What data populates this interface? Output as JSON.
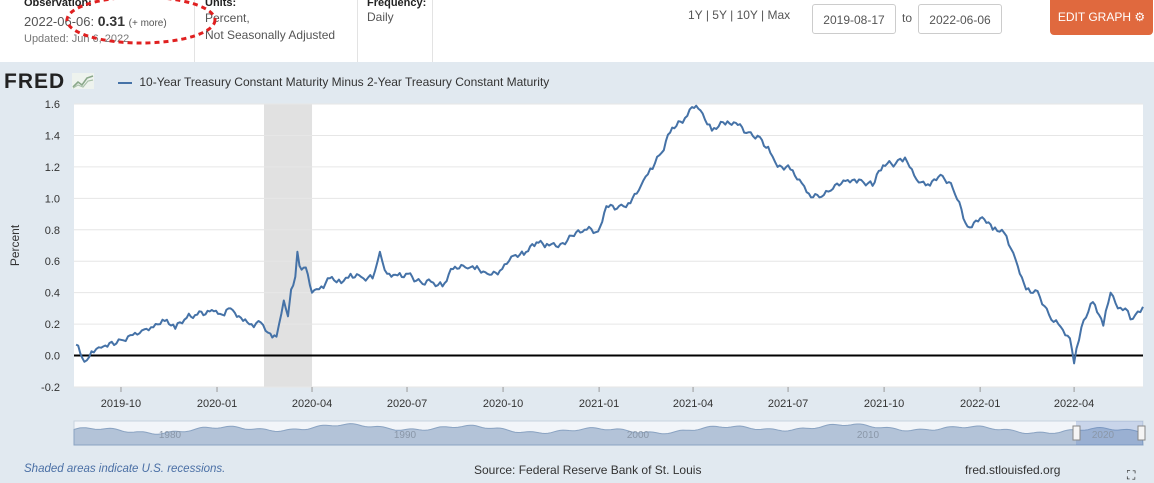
{
  "header": {
    "observation_label": "Observation:",
    "observation_date": "2022-06-06:",
    "observation_value": "0.31",
    "observation_more": "(+ more)",
    "updated": "Updated: Jun 6, 2022",
    "units_label": "Units:",
    "units_line1": "Percent,",
    "units_line2": "Not Seasonally Adjusted",
    "frequency_label": "Frequency:",
    "frequency_value": "Daily",
    "range_1y": "1Y",
    "range_5y": "5Y",
    "range_10y": "10Y",
    "range_max": "Max",
    "range_sep": "|",
    "start_date": "2019-08-17",
    "to_label": "to",
    "end_date": "2022-06-06",
    "edit_graph": "EDIT GRAPH"
  },
  "logo_text": "FRED",
  "footer": {
    "note": "Shaded areas indicate U.S. recessions.",
    "source": "Source: Federal Reserve Bank of St. Louis",
    "site": "fred.stlouisfed.org",
    "navigator_labels": [
      "1980",
      "1990",
      "2000",
      "2010",
      "2020"
    ]
  },
  "colors": {
    "line": "#4572a7",
    "recession": "#e1e1e1",
    "panel": "#e1e9f0",
    "edit_button": "#e0693e"
  },
  "chart_data": {
    "type": "line",
    "title": "10-Year Treasury Constant Maturity Minus 2-Year Treasury Constant Maturity",
    "xlabel": "",
    "ylabel": "Percent",
    "ylim": [
      -0.2,
      1.6
    ],
    "yticks": [
      -0.2,
      0.0,
      0.2,
      0.4,
      0.6,
      0.8,
      1.0,
      1.2,
      1.4,
      1.6
    ],
    "ytick_labels": [
      "-0.2",
      "0.0",
      "0.2",
      "0.4",
      "0.6",
      "0.8",
      "1.0",
      "1.2",
      "1.4",
      "1.6"
    ],
    "xlim": [
      "2019-08-17",
      "2022-06-06"
    ],
    "xticks": [
      "2019-10-01",
      "2020-01-01",
      "2020-04-01",
      "2020-07-01",
      "2020-10-01",
      "2021-01-01",
      "2021-04-01",
      "2021-07-01",
      "2021-10-01",
      "2022-01-01",
      "2022-04-01"
    ],
    "xtick_labels": [
      "2019-10",
      "2020-01",
      "2020-04",
      "2020-07",
      "2020-10",
      "2021-01",
      "2021-04",
      "2021-07",
      "2021-10",
      "2022-01",
      "2022-04"
    ],
    "recessions": [
      [
        "2020-02-15",
        "2020-04-01"
      ]
    ],
    "zero_line": true,
    "grid": "horizontal",
    "series": [
      {
        "name": "10-Year Treasury Constant Maturity Minus 2-Year Treasury Constant Maturity",
        "points": [
          [
            "2019-08-19",
            0.07
          ],
          [
            "2019-08-27",
            -0.04
          ],
          [
            "2019-09-05",
            0.02
          ],
          [
            "2019-09-12",
            0.05
          ],
          [
            "2019-09-20",
            0.08
          ],
          [
            "2019-10-01",
            0.1
          ],
          [
            "2019-10-10",
            0.13
          ],
          [
            "2019-10-21",
            0.16
          ],
          [
            "2019-11-01",
            0.18
          ],
          [
            "2019-11-12",
            0.22
          ],
          [
            "2019-11-22",
            0.17
          ],
          [
            "2019-12-03",
            0.24
          ],
          [
            "2019-12-13",
            0.26
          ],
          [
            "2019-12-27",
            0.29
          ],
          [
            "2020-01-06",
            0.26
          ],
          [
            "2020-01-14",
            0.3
          ],
          [
            "2020-01-24",
            0.24
          ],
          [
            "2020-02-03",
            0.2
          ],
          [
            "2020-02-12",
            0.21
          ],
          [
            "2020-02-21",
            0.14
          ],
          [
            "2020-02-27",
            0.12
          ],
          [
            "2020-03-05",
            0.35
          ],
          [
            "2020-03-09",
            0.25
          ],
          [
            "2020-03-12",
            0.42
          ],
          [
            "2020-03-16",
            0.5
          ],
          [
            "2020-03-18",
            0.66
          ],
          [
            "2020-03-20",
            0.57
          ],
          [
            "2020-03-26",
            0.56
          ],
          [
            "2020-04-01",
            0.4
          ],
          [
            "2020-04-10",
            0.44
          ],
          [
            "2020-04-20",
            0.5
          ],
          [
            "2020-04-29",
            0.46
          ],
          [
            "2020-05-08",
            0.52
          ],
          [
            "2020-05-18",
            0.5
          ],
          [
            "2020-05-29",
            0.49
          ],
          [
            "2020-06-05",
            0.66
          ],
          [
            "2020-06-12",
            0.52
          ],
          [
            "2020-06-22",
            0.51
          ],
          [
            "2020-07-02",
            0.52
          ],
          [
            "2020-07-14",
            0.47
          ],
          [
            "2020-07-24",
            0.47
          ],
          [
            "2020-08-04",
            0.44
          ],
          [
            "2020-08-14",
            0.55
          ],
          [
            "2020-08-26",
            0.56
          ],
          [
            "2020-09-04",
            0.55
          ],
          [
            "2020-09-16",
            0.52
          ],
          [
            "2020-09-28",
            0.54
          ],
          [
            "2020-10-09",
            0.63
          ],
          [
            "2020-10-21",
            0.64
          ],
          [
            "2020-11-02",
            0.72
          ],
          [
            "2020-11-12",
            0.71
          ],
          [
            "2020-11-25",
            0.71
          ],
          [
            "2020-12-08",
            0.76
          ],
          [
            "2020-12-18",
            0.8
          ],
          [
            "2020-12-31",
            0.79
          ],
          [
            "2021-01-08",
            0.95
          ],
          [
            "2021-01-20",
            0.95
          ],
          [
            "2021-01-29",
            0.97
          ],
          [
            "2021-02-10",
            1.08
          ],
          [
            "2021-02-19",
            1.19
          ],
          [
            "2021-03-02",
            1.29
          ],
          [
            "2021-03-12",
            1.45
          ],
          [
            "2021-03-22",
            1.48
          ],
          [
            "2021-03-31",
            1.58
          ],
          [
            "2021-04-08",
            1.56
          ],
          [
            "2021-04-19",
            1.43
          ],
          [
            "2021-05-04",
            1.49
          ],
          [
            "2021-05-12",
            1.48
          ],
          [
            "2021-05-24",
            1.42
          ],
          [
            "2021-06-04",
            1.39
          ],
          [
            "2021-06-14",
            1.29
          ],
          [
            "2021-06-21",
            1.2
          ],
          [
            "2021-07-01",
            1.21
          ],
          [
            "2021-07-12",
            1.12
          ],
          [
            "2021-07-21",
            1.03
          ],
          [
            "2021-08-02",
            1.01
          ],
          [
            "2021-08-13",
            1.06
          ],
          [
            "2021-08-25",
            1.11
          ],
          [
            "2021-09-07",
            1.12
          ],
          [
            "2021-09-20",
            1.08
          ],
          [
            "2021-09-30",
            1.21
          ],
          [
            "2021-10-12",
            1.22
          ],
          [
            "2021-10-21",
            1.26
          ],
          [
            "2021-11-01",
            1.12
          ],
          [
            "2021-11-12",
            1.09
          ],
          [
            "2021-11-24",
            1.15
          ],
          [
            "2021-12-06",
            1.06
          ],
          [
            "2021-12-20",
            0.82
          ],
          [
            "2022-01-03",
            0.88
          ],
          [
            "2022-01-13",
            0.8
          ],
          [
            "2022-01-24",
            0.78
          ],
          [
            "2022-02-04",
            0.61
          ],
          [
            "2022-02-14",
            0.42
          ],
          [
            "2022-02-25",
            0.41
          ],
          [
            "2022-03-08",
            0.26
          ],
          [
            "2022-03-17",
            0.2
          ],
          [
            "2022-03-28",
            0.11
          ],
          [
            "2022-04-01",
            -0.05
          ],
          [
            "2022-04-08",
            0.18
          ],
          [
            "2022-04-19",
            0.34
          ],
          [
            "2022-04-29",
            0.19
          ],
          [
            "2022-05-06",
            0.4
          ],
          [
            "2022-05-13",
            0.3
          ],
          [
            "2022-05-20",
            0.3
          ],
          [
            "2022-05-25",
            0.23
          ],
          [
            "2022-06-01",
            0.28
          ],
          [
            "2022-06-06",
            0.31
          ]
        ]
      }
    ]
  }
}
